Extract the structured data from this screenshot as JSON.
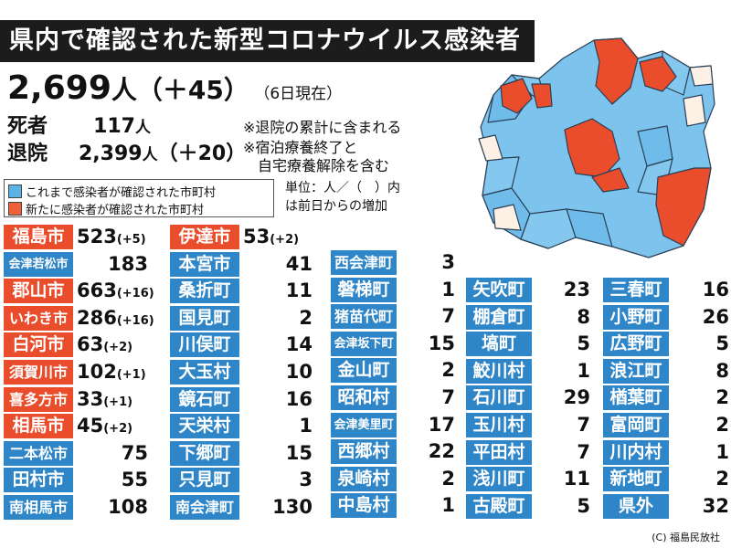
{
  "title": "県内で確認された新型コロナウイルス感染者",
  "total": {
    "value": "2,699",
    "unit": "人",
    "increase": "（＋45）",
    "as_of": "（6日現在）"
  },
  "deaths": {
    "label": "死者",
    "value": "117",
    "unit": "人"
  },
  "recovered": {
    "label": "退院",
    "value": "2,399",
    "unit": "人",
    "increase": "（＋20）"
  },
  "notes": [
    "※退院の累計に含まれる",
    "※宿泊療養終了と",
    "自宅療養解除を含む"
  ],
  "legend": [
    {
      "label": "これまで感染者が確認された市町村",
      "color": "#5bb3e6"
    },
    {
      "label": "新たに感染者が確認された市町村",
      "color": "#f0603a"
    }
  ],
  "unit_note": [
    "単位：人／（　）内",
    "は前日からの増加"
  ],
  "colors": {
    "red": "#ea4d2c",
    "blue": "#2e86c8",
    "light_blue": "#7cc3ee",
    "cream": "#fdf0e4",
    "outline": "#2a3f55"
  },
  "columns": [
    [
      {
        "name": "福島市",
        "value": "523",
        "delta": "(+5)",
        "new": true
      },
      {
        "name": "会津若松市",
        "value": "183",
        "delta": "",
        "new": false
      },
      {
        "name": "郡山市",
        "value": "663",
        "delta": "(+16)",
        "new": true
      },
      {
        "name": "いわき市",
        "value": "286",
        "delta": "(+16)",
        "new": true
      },
      {
        "name": "白河市",
        "value": "63",
        "delta": "(+2)",
        "new": true
      },
      {
        "name": "須賀川市",
        "value": "102",
        "delta": "(+1)",
        "new": true
      },
      {
        "name": "喜多方市",
        "value": "33",
        "delta": "(+1)",
        "new": true
      },
      {
        "name": "相馬市",
        "value": "45",
        "delta": "(+2)",
        "new": true
      },
      {
        "name": "二本松市",
        "value": "75",
        "delta": "",
        "new": false
      },
      {
        "name": "田村市",
        "value": "55",
        "delta": "",
        "new": false
      },
      {
        "name": "南相馬市",
        "value": "108",
        "delta": "",
        "new": false
      }
    ],
    [
      {
        "name": "伊達市",
        "value": "53",
        "delta": "(+2)",
        "new": true
      },
      {
        "name": "本宮市",
        "value": "41",
        "delta": "",
        "new": false
      },
      {
        "name": "桑折町",
        "value": "11",
        "delta": "",
        "new": false
      },
      {
        "name": "国見町",
        "value": "2",
        "delta": "",
        "new": false
      },
      {
        "name": "川俣町",
        "value": "14",
        "delta": "",
        "new": false
      },
      {
        "name": "大玉村",
        "value": "10",
        "delta": "",
        "new": false
      },
      {
        "name": "鏡石町",
        "value": "16",
        "delta": "",
        "new": false
      },
      {
        "name": "天栄村",
        "value": "1",
        "delta": "",
        "new": false
      },
      {
        "name": "下郷町",
        "value": "15",
        "delta": "",
        "new": false
      },
      {
        "name": "只見町",
        "value": "3",
        "delta": "",
        "new": false
      },
      {
        "name": "南会津町",
        "value": "130",
        "delta": "",
        "new": false
      }
    ],
    [
      {
        "name": "西会津町",
        "value": "3",
        "delta": "",
        "new": false
      },
      {
        "name": "磐梯町",
        "value": "1",
        "delta": "",
        "new": false
      },
      {
        "name": "猪苗代町",
        "value": "7",
        "delta": "",
        "new": false
      },
      {
        "name": "会津坂下町",
        "value": "15",
        "delta": "",
        "new": false
      },
      {
        "name": "金山町",
        "value": "2",
        "delta": "",
        "new": false
      },
      {
        "name": "昭和村",
        "value": "7",
        "delta": "",
        "new": false
      },
      {
        "name": "会津美里町",
        "value": "17",
        "delta": "",
        "new": false
      },
      {
        "name": "西郷村",
        "value": "22",
        "delta": "",
        "new": false
      },
      {
        "name": "泉崎村",
        "value": "2",
        "delta": "",
        "new": false
      },
      {
        "name": "中島村",
        "value": "1",
        "delta": "",
        "new": false
      }
    ],
    [
      {
        "name": "矢吹町",
        "value": "23",
        "delta": "",
        "new": false
      },
      {
        "name": "棚倉町",
        "value": "8",
        "delta": "",
        "new": false
      },
      {
        "name": "塙町",
        "value": "5",
        "delta": "",
        "new": false
      },
      {
        "name": "鮫川村",
        "value": "1",
        "delta": "",
        "new": false
      },
      {
        "name": "石川町",
        "value": "29",
        "delta": "",
        "new": false
      },
      {
        "name": "玉川村",
        "value": "7",
        "delta": "",
        "new": false
      },
      {
        "name": "平田村",
        "value": "7",
        "delta": "",
        "new": false
      },
      {
        "name": "浅川町",
        "value": "11",
        "delta": "",
        "new": false
      },
      {
        "name": "古殿町",
        "value": "5",
        "delta": "",
        "new": false
      }
    ],
    [
      {
        "name": "三春町",
        "value": "16",
        "delta": "",
        "new": false
      },
      {
        "name": "小野町",
        "value": "26",
        "delta": "",
        "new": false
      },
      {
        "name": "広野町",
        "value": "5",
        "delta": "",
        "new": false
      },
      {
        "name": "浪江町",
        "value": "8",
        "delta": "",
        "new": false
      },
      {
        "name": "楢葉町",
        "value": "2",
        "delta": "",
        "new": false
      },
      {
        "name": "富岡町",
        "value": "2",
        "delta": "",
        "new": false
      },
      {
        "name": "川内村",
        "value": "1",
        "delta": "",
        "new": false
      },
      {
        "name": "新地町",
        "value": "2",
        "delta": "",
        "new": false
      },
      {
        "name": "県外",
        "value": "32",
        "delta": "",
        "new": false
      }
    ]
  ],
  "credit": "(C) 福島民放社"
}
